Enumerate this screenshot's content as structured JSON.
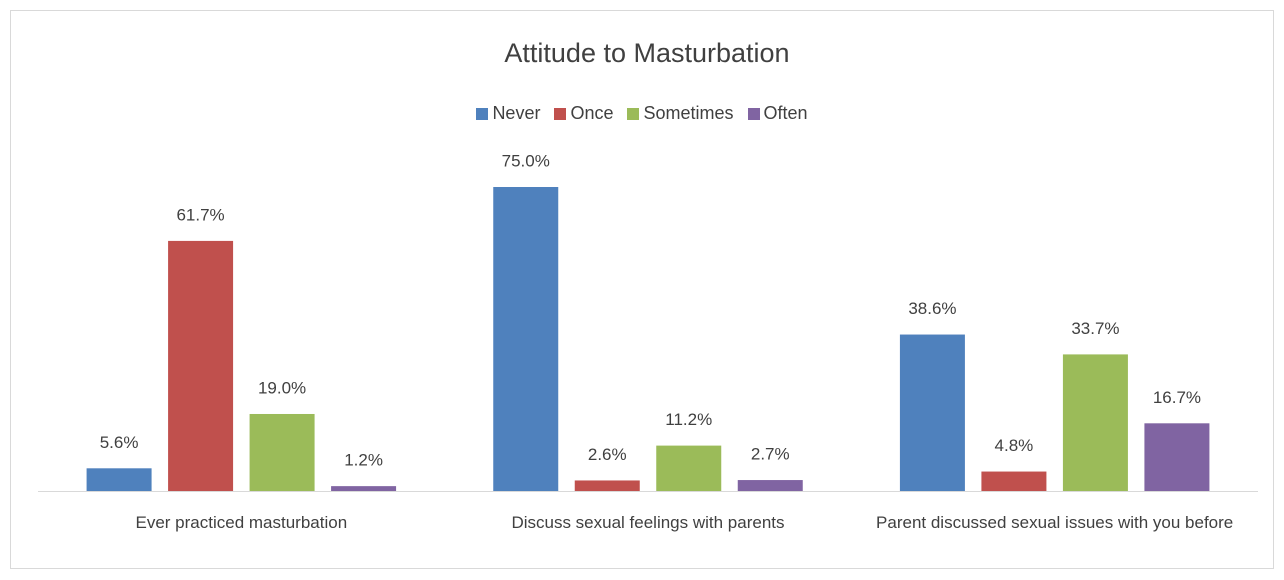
{
  "chart_data": {
    "type": "bar",
    "title": "Attitude to Masturbation",
    "categories": [
      "Ever practiced masturbation",
      "Discuss sexual feelings with parents",
      "Parent discussed sexual issues with you before"
    ],
    "series": [
      {
        "name": "Never",
        "color": "#4f81bd",
        "values": [
          5.6,
          75.0,
          38.6
        ],
        "value_labels": [
          "5.6%",
          "75.0%",
          "38.6%"
        ]
      },
      {
        "name": "Once",
        "color": "#c0504d",
        "values": [
          61.7,
          2.6,
          4.8
        ],
        "value_labels": [
          "61.7%",
          "2.6%",
          "4.8%"
        ]
      },
      {
        "name": "Sometimes",
        "color": "#9bbb59",
        "values": [
          19.0,
          11.2,
          33.7
        ],
        "value_labels": [
          "19.0%",
          "11.2%",
          "33.7%"
        ]
      },
      {
        "name": "Often",
        "color": "#8064a2",
        "values": [
          1.2,
          2.7,
          16.7
        ],
        "value_labels": [
          "1.2%",
          "2.7%",
          "16.7%"
        ]
      }
    ],
    "legend": "top"
  }
}
